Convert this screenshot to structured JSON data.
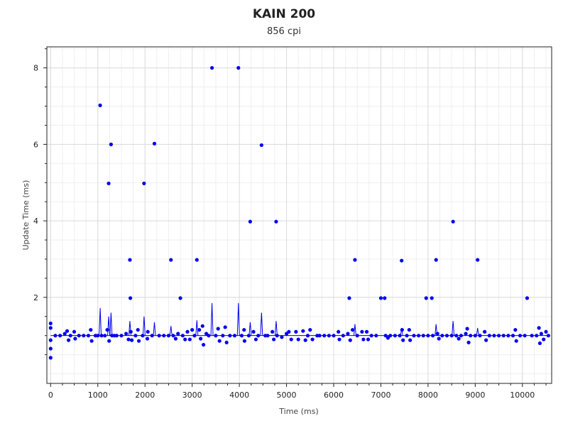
{
  "chart_data": {
    "type": "scatter",
    "title": "KAIN 200",
    "subtitle": "856 cpi",
    "xlabel": "Time (ms)",
    "ylabel": "Update Time (ms)",
    "xlim": [
      -80,
      10620
    ],
    "ylim": [
      -0.25,
      8.55
    ],
    "xticks": [
      0,
      1000,
      2000,
      3000,
      4000,
      5000,
      6000,
      7000,
      8000,
      9000,
      10000
    ],
    "yticks": [
      2,
      4,
      6,
      8
    ],
    "grid": true,
    "series_color": "#0000ee",
    "points": [
      [
        0,
        1.32
      ],
      [
        0,
        1.2
      ],
      [
        0,
        0.88
      ],
      [
        0,
        0.66
      ],
      [
        0,
        0.42
      ],
      [
        100,
        1.0
      ],
      [
        200,
        1.0
      ],
      [
        300,
        1.05
      ],
      [
        350,
        1.12
      ],
      [
        380,
        0.88
      ],
      [
        420,
        1.0
      ],
      [
        500,
        1.1
      ],
      [
        520,
        0.92
      ],
      [
        600,
        1.0
      ],
      [
        700,
        1.0
      ],
      [
        800,
        1.0
      ],
      [
        850,
        1.15
      ],
      [
        870,
        0.86
      ],
      [
        950,
        1.0
      ],
      [
        1000,
        1.0
      ],
      [
        1050,
        7.02
      ],
      [
        1080,
        1.0
      ],
      [
        1150,
        1.0
      ],
      [
        1200,
        1.15
      ],
      [
        1230,
        4.98
      ],
      [
        1240,
        0.86
      ],
      [
        1280,
        6.0
      ],
      [
        1300,
        1.0
      ],
      [
        1350,
        1.0
      ],
      [
        1400,
        1.0
      ],
      [
        1500,
        1.0
      ],
      [
        1600,
        1.05
      ],
      [
        1650,
        0.9
      ],
      [
        1680,
        2.98
      ],
      [
        1690,
        1.98
      ],
      [
        1700,
        1.1
      ],
      [
        1720,
        0.88
      ],
      [
        1800,
        1.0
      ],
      [
        1850,
        1.15
      ],
      [
        1870,
        0.86
      ],
      [
        1950,
        1.0
      ],
      [
        1980,
        4.98
      ],
      [
        2050,
        0.92
      ],
      [
        2060,
        1.1
      ],
      [
        2150,
        1.0
      ],
      [
        2200,
        6.02
      ],
      [
        2300,
        1.0
      ],
      [
        2400,
        1.0
      ],
      [
        2500,
        1.0
      ],
      [
        2550,
        2.98
      ],
      [
        2600,
        1.0
      ],
      [
        2650,
        0.92
      ],
      [
        2700,
        1.05
      ],
      [
        2750,
        1.98
      ],
      [
        2800,
        1.0
      ],
      [
        2850,
        0.9
      ],
      [
        2900,
        1.1
      ],
      [
        2950,
        0.9
      ],
      [
        3000,
        1.15
      ],
      [
        3050,
        1.0
      ],
      [
        3100,
        2.98
      ],
      [
        3150,
        1.15
      ],
      [
        3180,
        0.92
      ],
      [
        3220,
        1.25
      ],
      [
        3240,
        0.76
      ],
      [
        3300,
        1.05
      ],
      [
        3350,
        1.0
      ],
      [
        3420,
        8.0
      ],
      [
        3500,
        1.0
      ],
      [
        3550,
        1.18
      ],
      [
        3580,
        0.86
      ],
      [
        3650,
        1.0
      ],
      [
        3700,
        1.22
      ],
      [
        3730,
        0.82
      ],
      [
        3800,
        1.0
      ],
      [
        3900,
        1.0
      ],
      [
        3980,
        8.0
      ],
      [
        4050,
        1.0
      ],
      [
        4100,
        1.15
      ],
      [
        4110,
        0.86
      ],
      [
        4200,
        1.0
      ],
      [
        4230,
        3.98
      ],
      [
        4300,
        1.1
      ],
      [
        4350,
        0.9
      ],
      [
        4400,
        1.0
      ],
      [
        4470,
        5.98
      ],
      [
        4550,
        1.0
      ],
      [
        4600,
        1.0
      ],
      [
        4700,
        1.1
      ],
      [
        4730,
        0.9
      ],
      [
        4780,
        3.98
      ],
      [
        4800,
        1.0
      ],
      [
        4900,
        0.96
      ],
      [
        5000,
        1.05
      ],
      [
        5050,
        1.1
      ],
      [
        5100,
        0.9
      ],
      [
        5200,
        1.1
      ],
      [
        5250,
        0.9
      ],
      [
        5350,
        1.12
      ],
      [
        5400,
        0.88
      ],
      [
        5450,
        1.0
      ],
      [
        5500,
        1.15
      ],
      [
        5550,
        0.9
      ],
      [
        5650,
        1.0
      ],
      [
        5700,
        1.0
      ],
      [
        5800,
        1.0
      ],
      [
        5900,
        1.0
      ],
      [
        6000,
        1.0
      ],
      [
        6100,
        1.1
      ],
      [
        6120,
        0.9
      ],
      [
        6200,
        1.0
      ],
      [
        6300,
        1.05
      ],
      [
        6330,
        1.98
      ],
      [
        6350,
        0.88
      ],
      [
        6400,
        1.15
      ],
      [
        6450,
        2.98
      ],
      [
        6500,
        1.0
      ],
      [
        6600,
        1.1
      ],
      [
        6630,
        0.9
      ],
      [
        6700,
        1.1
      ],
      [
        6730,
        0.9
      ],
      [
        6800,
        1.0
      ],
      [
        6900,
        1.0
      ],
      [
        7000,
        1.98
      ],
      [
        7080,
        1.98
      ],
      [
        7100,
        1.0
      ],
      [
        7150,
        0.94
      ],
      [
        7200,
        1.0
      ],
      [
        7300,
        1.0
      ],
      [
        7400,
        1.0
      ],
      [
        7440,
        2.96
      ],
      [
        7450,
        1.15
      ],
      [
        7470,
        0.88
      ],
      [
        7550,
        1.0
      ],
      [
        7600,
        1.15
      ],
      [
        7620,
        0.88
      ],
      [
        7700,
        1.0
      ],
      [
        7800,
        1.0
      ],
      [
        7900,
        1.0
      ],
      [
        7960,
        1.98
      ],
      [
        8000,
        1.0
      ],
      [
        8080,
        1.98
      ],
      [
        8100,
        1.0
      ],
      [
        8170,
        2.98
      ],
      [
        8200,
        1.05
      ],
      [
        8230,
        0.92
      ],
      [
        8300,
        1.0
      ],
      [
        8400,
        1.0
      ],
      [
        8500,
        1.0
      ],
      [
        8530,
        3.98
      ],
      [
        8600,
        1.0
      ],
      [
        8650,
        0.92
      ],
      [
        8700,
        1.0
      ],
      [
        8800,
        1.05
      ],
      [
        8830,
        1.18
      ],
      [
        8860,
        0.82
      ],
      [
        8900,
        1.0
      ],
      [
        9000,
        1.0
      ],
      [
        9050,
        2.98
      ],
      [
        9100,
        1.0
      ],
      [
        9200,
        1.1
      ],
      [
        9230,
        0.88
      ],
      [
        9300,
        1.0
      ],
      [
        9400,
        1.0
      ],
      [
        9500,
        1.0
      ],
      [
        9600,
        1.0
      ],
      [
        9700,
        1.0
      ],
      [
        9800,
        1.0
      ],
      [
        9850,
        1.15
      ],
      [
        9870,
        0.86
      ],
      [
        9950,
        1.0
      ],
      [
        10050,
        1.0
      ],
      [
        10100,
        1.98
      ],
      [
        10200,
        1.0
      ],
      [
        10300,
        1.0
      ],
      [
        10350,
        1.2
      ],
      [
        10370,
        0.8
      ],
      [
        10400,
        1.05
      ],
      [
        10450,
        0.9
      ],
      [
        10500,
        1.1
      ],
      [
        10550,
        1.0
      ]
    ],
    "spikes": [
      [
        1050,
        1.72
      ],
      [
        1230,
        1.5
      ],
      [
        1280,
        1.6
      ],
      [
        1680,
        1.38
      ],
      [
        1980,
        1.5
      ],
      [
        2200,
        1.35
      ],
      [
        2550,
        1.25
      ],
      [
        3100,
        1.4
      ],
      [
        3420,
        1.85
      ],
      [
        3980,
        1.85
      ],
      [
        4230,
        1.35
      ],
      [
        4470,
        1.6
      ],
      [
        4780,
        1.38
      ],
      [
        6450,
        1.3
      ],
      [
        7440,
        1.2
      ],
      [
        8170,
        1.3
      ],
      [
        8530,
        1.38
      ],
      [
        9050,
        1.2
      ]
    ]
  }
}
